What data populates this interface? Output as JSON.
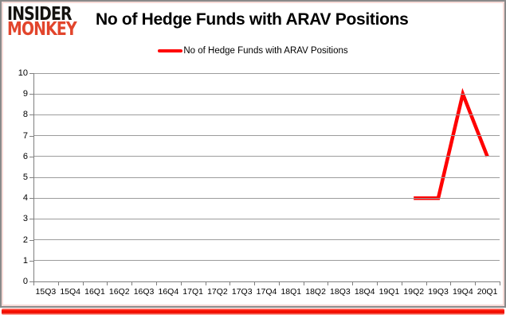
{
  "logo": {
    "line1": "INSIDER",
    "line2": "MONKEY",
    "accent_color": "#e2452c"
  },
  "title": "No of Hedge Funds with ARAV Positions",
  "legend": {
    "label": "No of Hedge Funds with ARAV Positions",
    "line_color": "#ff0000"
  },
  "chart_data": {
    "type": "line",
    "title": "No of Hedge Funds with ARAV Positions",
    "categories": [
      "15Q3",
      "15Q4",
      "16Q1",
      "16Q2",
      "16Q3",
      "16Q4",
      "17Q1",
      "17Q2",
      "17Q3",
      "17Q4",
      "18Q1",
      "18Q2",
      "18Q3",
      "18Q4",
      "19Q1",
      "19Q2",
      "19Q3",
      "19Q4",
      "20Q1"
    ],
    "series": [
      {
        "name": "No of Hedge Funds with ARAV Positions",
        "color": "#ff0000",
        "values": [
          null,
          null,
          null,
          null,
          null,
          null,
          null,
          null,
          null,
          null,
          null,
          null,
          null,
          null,
          null,
          4,
          4,
          9,
          6
        ]
      }
    ],
    "ylim": [
      0,
      10
    ],
    "ytick_step": 1,
    "xlabel": "",
    "ylabel": "",
    "grid": true,
    "legend_position": "top-center"
  },
  "colors": {
    "gridline": "#9c9c9c",
    "axis": "#7f7f7f",
    "text": "#000000",
    "frame_border": "#8a8a8a",
    "frame_inner_tint": "#f7dbd8",
    "accent_bar": "#ff0000"
  }
}
